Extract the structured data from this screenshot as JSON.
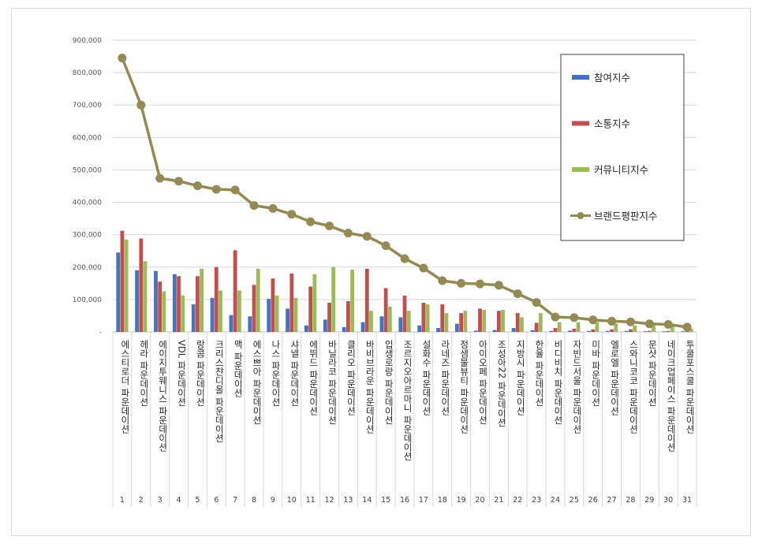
{
  "chart_data": {
    "type": "bar",
    "title": "",
    "xlabel": "",
    "ylabel": "",
    "ylim": [
      0,
      900000
    ],
    "yticks": [
      0,
      100000,
      200000,
      300000,
      400000,
      500000,
      600000,
      700000,
      800000,
      900000
    ],
    "ytick_labels": [
      "-",
      "100,000",
      "200,000",
      "300,000",
      "400,000",
      "500,000",
      "600,000",
      "700,000",
      "800,000",
      "900,000"
    ],
    "grid": true,
    "legend_position": "top-right",
    "ranks": [
      "1",
      "2",
      "3",
      "4",
      "5",
      "6",
      "7",
      "8",
      "9",
      "10",
      "11",
      "12",
      "13",
      "14",
      "15",
      "16",
      "17",
      "18",
      "19",
      "20",
      "21",
      "22",
      "23",
      "24",
      "25",
      "26",
      "27",
      "28",
      "29",
      "30",
      "31"
    ],
    "categories": [
      "에스티로더 파운데이션",
      "헤라 파운데이션",
      "에이지투웨니스 파운데이션",
      "VDL 파운데이션",
      "랑콤 파운데이션",
      "크리스챤디올 파운데이션",
      "맥 파운데이션",
      "에스쁘아 파운데이션",
      "나스 파운데이션",
      "샤넬 파운데이션",
      "에뛰드 파운데이션",
      "바닐라코 파운데이션",
      "클리오 파운데이션",
      "바비브라운 파운데이션",
      "입생로랑 파운데이션",
      "조르지오아르마니 파운데이션",
      "설화수 파운데이션",
      "라네즈 파운데이션",
      "정샘물뷰티 파운데이션",
      "아이오페 파운데이션",
      "조성아22 파운데이션",
      "지방시 파운데이션",
      "한율 파운데이션",
      "비디비치 파운데이션",
      "자빈드서울 파운데이션",
      "미바 파운데이션",
      "엘로엘 파운데이션",
      "스와니코코 파운데이션",
      "문샷 파운데이션",
      "네이크업페이스 파운데이션",
      "투쿨포스쿨 파운데이션"
    ],
    "series": [
      {
        "name": "참여지수",
        "type": "bar",
        "color": "#4472c4",
        "values": [
          245000,
          190000,
          188000,
          178000,
          85000,
          105000,
          52000,
          48000,
          102000,
          72000,
          20000,
          38000,
          15000,
          30000,
          48000,
          45000,
          20000,
          12000,
          25000,
          4000,
          6000,
          12000,
          5000,
          3000,
          4000,
          3000,
          3000,
          3000,
          2000,
          2000,
          2000
        ]
      },
      {
        "name": "소통지수",
        "type": "bar",
        "color": "#c0504d",
        "values": [
          312000,
          288000,
          155000,
          172000,
          172000,
          200000,
          252000,
          145000,
          165000,
          180000,
          140000,
          90000,
          95000,
          195000,
          135000,
          112000,
          90000,
          85000,
          58000,
          72000,
          65000,
          58000,
          28000,
          12000,
          10000,
          8000,
          8000,
          8000,
          3000,
          3000,
          3000
        ]
      },
      {
        "name": "커뮤니티지수",
        "type": "bar",
        "color": "#9bbb59",
        "values": [
          285000,
          218000,
          125000,
          112000,
          195000,
          128000,
          128000,
          195000,
          112000,
          105000,
          178000,
          200000,
          192000,
          65000,
          78000,
          65000,
          85000,
          58000,
          65000,
          68000,
          68000,
          45000,
          58000,
          30000,
          30000,
          30000,
          26000,
          20000,
          20000,
          18000,
          10000
        ]
      },
      {
        "name": "브랜드평판지수",
        "type": "line",
        "color": "#948a54",
        "values": [
          845000,
          700000,
          474000,
          465000,
          451000,
          440000,
          438000,
          390000,
          381000,
          363000,
          340000,
          327000,
          305000,
          295000,
          266000,
          226000,
          197000,
          158000,
          150000,
          148000,
          144000,
          118000,
          91000,
          46000,
          44000,
          37000,
          33000,
          31000,
          25000,
          23000,
          15000
        ]
      }
    ]
  }
}
